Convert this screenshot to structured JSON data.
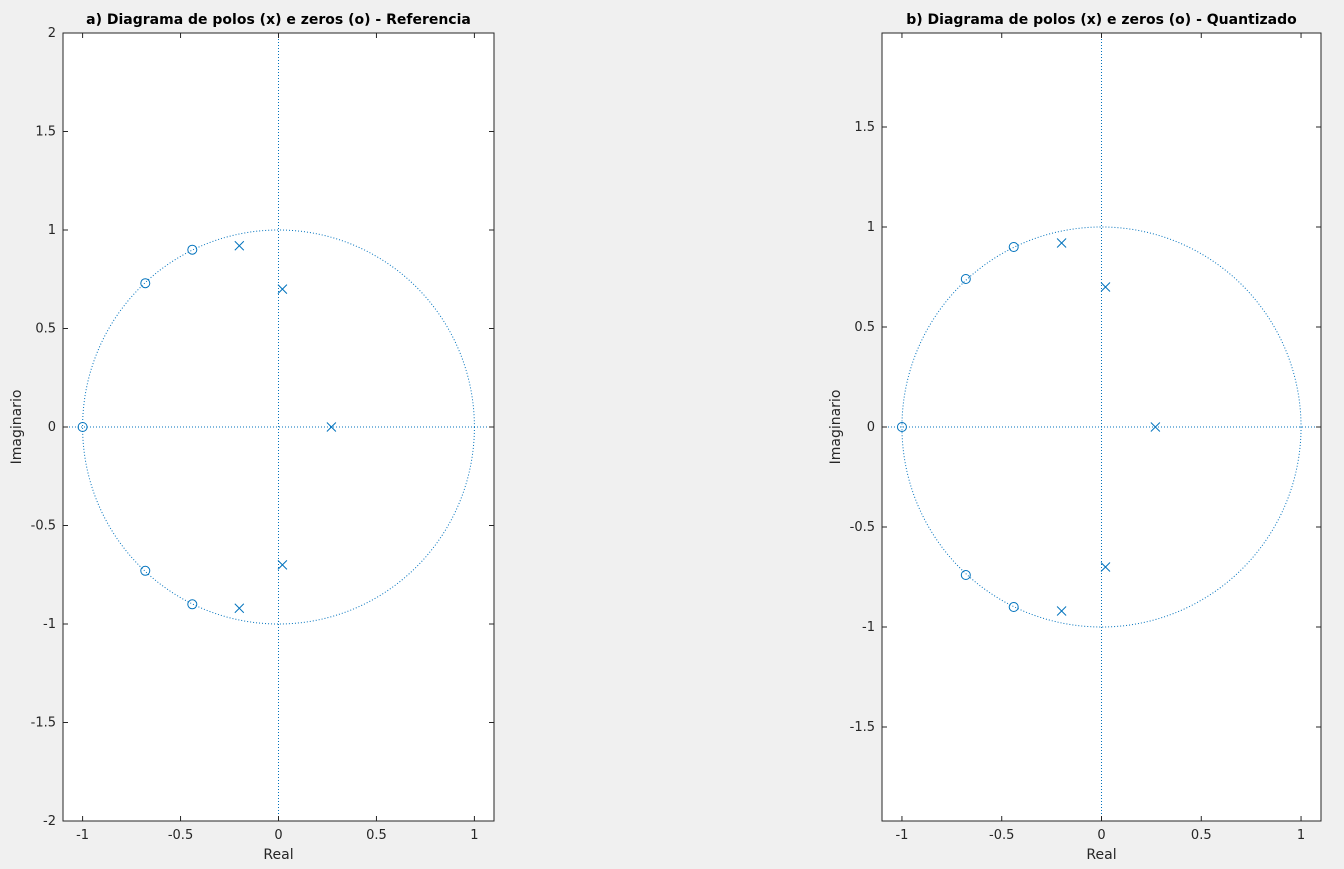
{
  "colors": {
    "marker": "#0072bd",
    "axes": "#262626",
    "background": "#f0f0f0",
    "plot_bg": "#ffffff"
  },
  "chart_data": [
    {
      "type": "scatter",
      "title": "a) Diagrama de polos (x) e zeros (o) - Referencia",
      "xlabel": "Real",
      "ylabel": "Imaginario",
      "xlim": [
        -1.1,
        1.1
      ],
      "ylim": [
        -2,
        2
      ],
      "xticks": [
        -1,
        -0.5,
        0,
        0.5,
        1
      ],
      "xtick_labels": [
        "-1",
        "-0.5",
        "0",
        "0.5",
        "1"
      ],
      "yticks": [
        -2,
        -1.5,
        -1,
        -0.5,
        0,
        0.5,
        1,
        1.5,
        2
      ],
      "ytick_labels": [
        "-2",
        "-1.5",
        "-1",
        "-0.5",
        "0",
        "0.5",
        "1",
        "1.5",
        "2"
      ],
      "unit_circle": true,
      "grid": false,
      "series": [
        {
          "marker": "x",
          "points": [
            [
              -0.2,
              0.92
            ],
            [
              0.02,
              0.7
            ],
            [
              0.27,
              0.0
            ],
            [
              0.02,
              -0.7
            ],
            [
              -0.2,
              -0.92
            ]
          ]
        },
        {
          "marker": "o",
          "points": [
            [
              -1.0,
              0.0
            ],
            [
              -0.68,
              0.73
            ],
            [
              -0.44,
              0.9
            ],
            [
              -0.68,
              -0.73
            ],
            [
              -0.44,
              -0.9
            ]
          ]
        }
      ]
    },
    {
      "type": "scatter",
      "title": "b) Diagrama de polos (x) e zeros (o) - Quantizado",
      "xlabel": "Real",
      "ylabel": "Imaginario",
      "xlim": [
        -1.1,
        1.1
      ],
      "ylim": [
        -1.97,
        1.97
      ],
      "xticks": [
        -1,
        -0.5,
        0,
        0.5,
        1
      ],
      "xtick_labels": [
        "-1",
        "-0.5",
        "0",
        "0.5",
        "1"
      ],
      "yticks": [
        -1.5,
        -1,
        -0.5,
        0,
        0.5,
        1,
        1.5
      ],
      "ytick_labels": [
        "-1.5",
        "-1",
        "-0.5",
        "0",
        "0.5",
        "1",
        "1.5"
      ],
      "unit_circle": true,
      "grid": false,
      "series": [
        {
          "marker": "x",
          "points": [
            [
              -0.2,
              0.92
            ],
            [
              0.02,
              0.7
            ],
            [
              0.27,
              0.0
            ],
            [
              0.02,
              -0.7
            ],
            [
              -0.2,
              -0.92
            ]
          ]
        },
        {
          "marker": "o",
          "points": [
            [
              -1.0,
              0.0
            ],
            [
              -0.68,
              0.74
            ],
            [
              -0.44,
              0.9
            ],
            [
              -0.68,
              -0.74
            ],
            [
              -0.44,
              -0.9
            ]
          ]
        }
      ]
    }
  ]
}
